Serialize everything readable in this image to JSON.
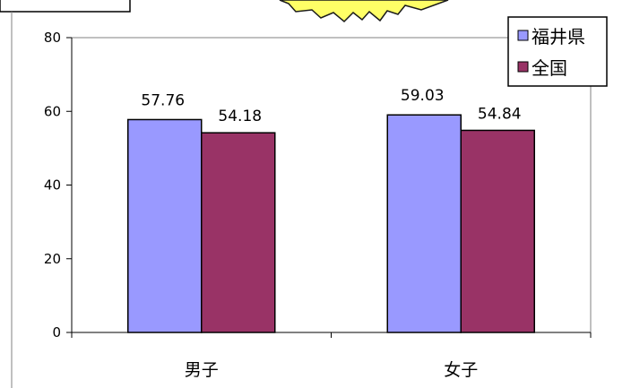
{
  "chart_data": {
    "type": "bar",
    "categories": [
      "男子",
      "女子"
    ],
    "series": [
      {
        "name": "福井県",
        "values": [
          57.76,
          59.03
        ],
        "labels": [
          "57.76",
          "59.03"
        ],
        "color": "#9999ff"
      },
      {
        "name": "全国",
        "values": [
          54.18,
          54.84
        ],
        "labels": [
          "54.18",
          "54.84"
        ],
        "color": "#993366"
      }
    ],
    "ylim": [
      0,
      80
    ],
    "yticks": [
      0,
      20,
      40,
      60,
      80
    ],
    "ytick_labels": [
      "0",
      "20",
      "40",
      "60",
      "80"
    ],
    "grid": false,
    "legend_position": "top-right",
    "title": "",
    "xlabel": "",
    "ylabel": ""
  },
  "colors": {
    "starburst": "#ffff66",
    "starburst_outline": "#1a1a1a",
    "frame": "#000000"
  }
}
